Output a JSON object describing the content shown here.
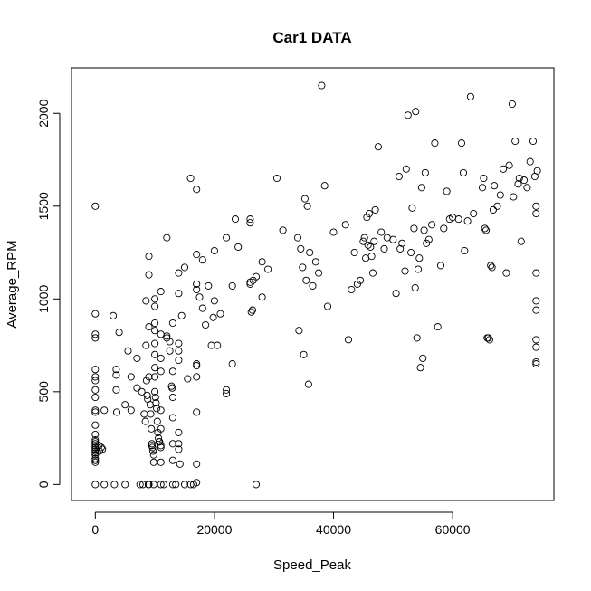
{
  "chart_data": {
    "type": "scatter",
    "title": "Car1 DATA",
    "xlabel": "Speed_Peak",
    "ylabel": "Average_RPM",
    "xlim": [
      -4000,
      77000
    ],
    "ylim": [
      -86,
      2245
    ],
    "x_ticks": [
      0,
      20000,
      40000,
      60000
    ],
    "x_tick_labels": [
      "0",
      "20000",
      "40000",
      "60000"
    ],
    "y_ticks": [
      0,
      500,
      1000,
      1500,
      2000
    ],
    "y_tick_labels": [
      "0",
      "500",
      "1000",
      "1500",
      "2000"
    ],
    "grid": false,
    "legend": "none",
    "marker": "open-circle",
    "points": [
      [
        0,
        1500
      ],
      [
        0,
        920
      ],
      [
        0,
        810
      ],
      [
        0,
        790
      ],
      [
        0,
        620
      ],
      [
        0,
        580
      ],
      [
        0,
        560
      ],
      [
        0,
        510
      ],
      [
        0,
        470
      ],
      [
        0,
        400
      ],
      [
        0,
        390
      ],
      [
        0,
        320
      ],
      [
        0,
        270
      ],
      [
        0,
        240
      ],
      [
        0,
        230
      ],
      [
        0,
        220
      ],
      [
        0,
        210
      ],
      [
        0,
        200
      ],
      [
        0,
        190
      ],
      [
        0,
        180
      ],
      [
        0,
        170
      ],
      [
        0,
        160
      ],
      [
        0,
        140
      ],
      [
        0,
        130
      ],
      [
        0,
        120
      ],
      [
        0,
        0
      ],
      [
        600,
        210
      ],
      [
        700,
        180
      ],
      [
        1000,
        200
      ],
      [
        1200,
        190
      ],
      [
        1500,
        400
      ],
      [
        1500,
        0
      ],
      [
        3000,
        910
      ],
      [
        3200,
        0
      ],
      [
        3500,
        620
      ],
      [
        3500,
        590
      ],
      [
        3500,
        510
      ],
      [
        3600,
        390
      ],
      [
        4000,
        820
      ],
      [
        5000,
        0
      ],
      [
        5000,
        430
      ],
      [
        5500,
        720
      ],
      [
        6000,
        580
      ],
      [
        6000,
        400
      ],
      [
        7000,
        680
      ],
      [
        7000,
        520
      ],
      [
        7500,
        0
      ],
      [
        7800,
        500
      ],
      [
        8000,
        0
      ],
      [
        8200,
        380
      ],
      [
        8400,
        340
      ],
      [
        8500,
        990
      ],
      [
        8500,
        750
      ],
      [
        8600,
        560
      ],
      [
        8700,
        480
      ],
      [
        8800,
        460
      ],
      [
        8900,
        0
      ],
      [
        9000,
        0
      ],
      [
        9000,
        1230
      ],
      [
        9000,
        1130
      ],
      [
        9000,
        850
      ],
      [
        9000,
        580
      ],
      [
        9200,
        430
      ],
      [
        9300,
        380
      ],
      [
        9400,
        300
      ],
      [
        9500,
        220
      ],
      [
        9500,
        210
      ],
      [
        9600,
        200
      ],
      [
        9700,
        180
      ],
      [
        9800,
        160
      ],
      [
        9800,
        120
      ],
      [
        9800,
        0
      ],
      [
        10000,
        1000
      ],
      [
        10000,
        960
      ],
      [
        10000,
        870
      ],
      [
        10000,
        830
      ],
      [
        10000,
        760
      ],
      [
        10000,
        700
      ],
      [
        10000,
        630
      ],
      [
        10000,
        580
      ],
      [
        10000,
        500
      ],
      [
        10100,
        470
      ],
      [
        10200,
        440
      ],
      [
        10300,
        410
      ],
      [
        10400,
        340
      ],
      [
        10500,
        280
      ],
      [
        10600,
        250
      ],
      [
        10700,
        230
      ],
      [
        10800,
        230
      ],
      [
        11000,
        1040
      ],
      [
        11000,
        810
      ],
      [
        11000,
        680
      ],
      [
        11000,
        610
      ],
      [
        11000,
        400
      ],
      [
        11000,
        300
      ],
      [
        11000,
        210
      ],
      [
        11000,
        200
      ],
      [
        11000,
        120
      ],
      [
        11000,
        0
      ],
      [
        11500,
        0
      ],
      [
        12000,
        1330
      ],
      [
        12000,
        800
      ],
      [
        12000,
        790
      ],
      [
        12500,
        720
      ],
      [
        12500,
        770
      ],
      [
        12800,
        530
      ],
      [
        12900,
        520
      ],
      [
        13000,
        870
      ],
      [
        13000,
        610
      ],
      [
        13000,
        470
      ],
      [
        13000,
        360
      ],
      [
        13000,
        220
      ],
      [
        13000,
        130
      ],
      [
        13000,
        0
      ],
      [
        13500,
        0
      ],
      [
        14000,
        1140
      ],
      [
        14000,
        1030
      ],
      [
        14000,
        760
      ],
      [
        14000,
        720
      ],
      [
        14000,
        670
      ],
      [
        14000,
        280
      ],
      [
        14000,
        220
      ],
      [
        14000,
        190
      ],
      [
        14200,
        110
      ],
      [
        14500,
        910
      ],
      [
        15000,
        1170
      ],
      [
        15000,
        0
      ],
      [
        15500,
        570
      ],
      [
        16000,
        1650
      ],
      [
        16000,
        0
      ],
      [
        16500,
        0
      ],
      [
        17000,
        1590
      ],
      [
        17000,
        1240
      ],
      [
        17000,
        1080
      ],
      [
        17000,
        1050
      ],
      [
        17000,
        650
      ],
      [
        17000,
        640
      ],
      [
        17000,
        580
      ],
      [
        17000,
        390
      ],
      [
        17000,
        110
      ],
      [
        17000,
        10
      ],
      [
        17500,
        1010
      ],
      [
        18000,
        1210
      ],
      [
        18000,
        950
      ],
      [
        18500,
        860
      ],
      [
        19000,
        1070
      ],
      [
        19500,
        750
      ],
      [
        19800,
        900
      ],
      [
        20000,
        1260
      ],
      [
        20000,
        990
      ],
      [
        20500,
        750
      ],
      [
        21000,
        920
      ],
      [
        22000,
        1330
      ],
      [
        22000,
        510
      ],
      [
        22000,
        490
      ],
      [
        23000,
        650
      ],
      [
        23000,
        1070
      ],
      [
        23500,
        1430
      ],
      [
        24000,
        1280
      ],
      [
        26000,
        1430
      ],
      [
        26000,
        1410
      ],
      [
        26000,
        1090
      ],
      [
        26000,
        1080
      ],
      [
        26200,
        930
      ],
      [
        26400,
        940
      ],
      [
        26500,
        1100
      ],
      [
        27000,
        1120
      ],
      [
        27000,
        0
      ],
      [
        28000,
        1010
      ],
      [
        28000,
        1200
      ],
      [
        29000,
        1160
      ],
      [
        30500,
        1650
      ],
      [
        31500,
        1370
      ],
      [
        34000,
        1330
      ],
      [
        34200,
        830
      ],
      [
        34500,
        1270
      ],
      [
        34800,
        1170
      ],
      [
        35000,
        700
      ],
      [
        35200,
        1540
      ],
      [
        35400,
        1100
      ],
      [
        35600,
        1500
      ],
      [
        35800,
        540
      ],
      [
        36000,
        1250
      ],
      [
        36500,
        1070
      ],
      [
        37000,
        1200
      ],
      [
        37500,
        1140
      ],
      [
        38000,
        2150
      ],
      [
        38500,
        1610
      ],
      [
        39000,
        960
      ],
      [
        40000,
        1360
      ],
      [
        42000,
        1400
      ],
      [
        42500,
        780
      ],
      [
        43000,
        1050
      ],
      [
        43500,
        1250
      ],
      [
        44000,
        1080
      ],
      [
        44500,
        1100
      ],
      [
        45000,
        1310
      ],
      [
        45200,
        1330
      ],
      [
        45400,
        1220
      ],
      [
        45600,
        1440
      ],
      [
        45800,
        1290
      ],
      [
        46000,
        1460
      ],
      [
        46200,
        1280
      ],
      [
        46400,
        1230
      ],
      [
        46600,
        1140
      ],
      [
        46800,
        1310
      ],
      [
        47000,
        1480
      ],
      [
        47500,
        1820
      ],
      [
        48000,
        1360
      ],
      [
        48500,
        1270
      ],
      [
        49000,
        1330
      ],
      [
        50000,
        1320
      ],
      [
        50500,
        1030
      ],
      [
        51000,
        1660
      ],
      [
        51200,
        1270
      ],
      [
        51500,
        1300
      ],
      [
        52000,
        1150
      ],
      [
        52200,
        1700
      ],
      [
        52500,
        1990
      ],
      [
        53000,
        1250
      ],
      [
        53200,
        1490
      ],
      [
        53500,
        1380
      ],
      [
        53700,
        1060
      ],
      [
        53800,
        2010
      ],
      [
        54000,
        790
      ],
      [
        54200,
        1160
      ],
      [
        54400,
        1220
      ],
      [
        54600,
        630
      ],
      [
        54800,
        1600
      ],
      [
        55000,
        680
      ],
      [
        55200,
        1370
      ],
      [
        55400,
        1680
      ],
      [
        55600,
        1300
      ],
      [
        56000,
        1320
      ],
      [
        56500,
        1400
      ],
      [
        57000,
        1840
      ],
      [
        57500,
        850
      ],
      [
        58000,
        1180
      ],
      [
        58500,
        1380
      ],
      [
        59000,
        1580
      ],
      [
        59500,
        1430
      ],
      [
        60000,
        1440
      ],
      [
        61000,
        1430
      ],
      [
        61500,
        1840
      ],
      [
        61800,
        1680
      ],
      [
        62000,
        1260
      ],
      [
        62500,
        1420
      ],
      [
        63000,
        2090
      ],
      [
        63500,
        1460
      ],
      [
        65000,
        1600
      ],
      [
        65200,
        1650
      ],
      [
        65400,
        1380
      ],
      [
        65600,
        1370
      ],
      [
        65800,
        790
      ],
      [
        66000,
        790
      ],
      [
        66200,
        780
      ],
      [
        66400,
        1180
      ],
      [
        66600,
        1170
      ],
      [
        66800,
        1480
      ],
      [
        67000,
        1610
      ],
      [
        67500,
        1500
      ],
      [
        68000,
        1560
      ],
      [
        68500,
        1700
      ],
      [
        69000,
        1140
      ],
      [
        69500,
        1720
      ],
      [
        70000,
        2050
      ],
      [
        70200,
        1550
      ],
      [
        70500,
        1850
      ],
      [
        71000,
        1620
      ],
      [
        71200,
        1650
      ],
      [
        71500,
        1310
      ],
      [
        72000,
        1640
      ],
      [
        72500,
        1600
      ],
      [
        73000,
        1740
      ],
      [
        73500,
        1850
      ],
      [
        73800,
        1660
      ],
      [
        74000,
        1500
      ],
      [
        74000,
        1460
      ],
      [
        74000,
        1140
      ],
      [
        74000,
        990
      ],
      [
        74000,
        940
      ],
      [
        74000,
        780
      ],
      [
        74000,
        740
      ],
      [
        74000,
        660
      ],
      [
        74000,
        650
      ],
      [
        74200,
        1690
      ]
    ]
  }
}
